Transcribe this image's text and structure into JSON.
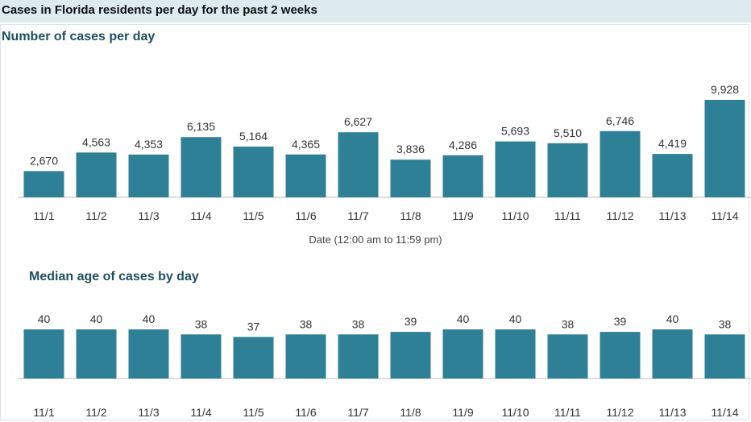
{
  "header": {
    "title": "Cases in Florida residents per day for the past 2 weeks"
  },
  "colors": {
    "bar": "#2e8096",
    "banner": "#ddebef",
    "title": "#1e4e5e"
  },
  "chart_data": [
    {
      "type": "bar",
      "title": "Number of cases per day",
      "xlabel": "Date (12:00 am to 11:59 pm)",
      "ylabel": "",
      "categories": [
        "11/1",
        "11/2",
        "11/3",
        "11/4",
        "11/5",
        "11/6",
        "11/7",
        "11/8",
        "11/9",
        "11/10",
        "11/11",
        "11/12",
        "11/13",
        "11/14"
      ],
      "values": [
        2670,
        4563,
        4353,
        6135,
        5164,
        4365,
        6627,
        3836,
        4286,
        5693,
        5510,
        6746,
        4419,
        9928
      ],
      "value_labels": [
        "2,670",
        "4,563",
        "4,353",
        "6,135",
        "5,164",
        "4,365",
        "6,627",
        "3,836",
        "4,286",
        "5,693",
        "5,510",
        "6,746",
        "4,419",
        "9,928"
      ],
      "ylim": [
        0,
        9928
      ],
      "grid": false
    },
    {
      "type": "bar",
      "title": "Median age of cases by day",
      "xlabel": "",
      "ylabel": "",
      "categories": [
        "11/1",
        "11/2",
        "11/3",
        "11/4",
        "11/5",
        "11/6",
        "11/7",
        "11/8",
        "11/9",
        "11/10",
        "11/11",
        "11/12",
        "11/13",
        "11/14"
      ],
      "values": [
        40,
        40,
        40,
        38,
        37,
        38,
        38,
        39,
        40,
        40,
        38,
        39,
        40,
        38
      ],
      "value_labels": [
        "40",
        "40",
        "40",
        "38",
        "37",
        "38",
        "38",
        "39",
        "40",
        "40",
        "38",
        "39",
        "40",
        "38"
      ],
      "ylim": [
        0,
        40
      ],
      "grid": false
    }
  ]
}
